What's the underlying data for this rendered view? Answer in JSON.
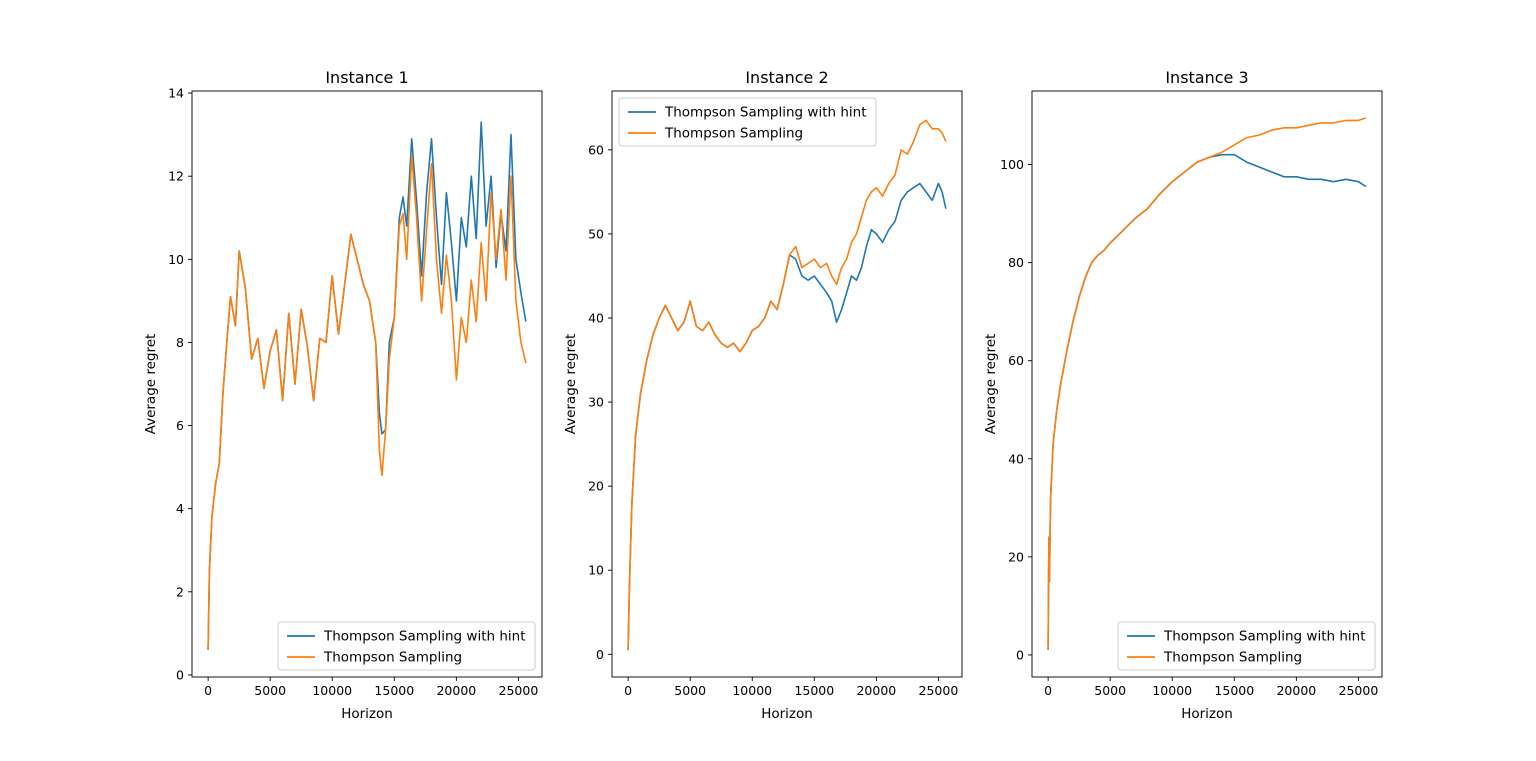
{
  "colors": {
    "series1": "#1f77b4",
    "series2": "#ff7f0e"
  },
  "chart_data": [
    {
      "type": "line",
      "title": "Instance 1",
      "xlabel": "Horizon",
      "ylabel": "Average regret",
      "xlim": [
        -1300,
        26900
      ],
      "ylim": [
        -0.05,
        14.05
      ],
      "xticks": [
        0,
        5000,
        10000,
        15000,
        20000,
        25000
      ],
      "yticks": [
        0,
        2,
        4,
        6,
        8,
        10,
        12,
        14
      ],
      "grid": false,
      "legend": {
        "position": "lower-right",
        "entries": [
          "Thompson Sampling with hint",
          "Thompson Sampling"
        ]
      },
      "series": [
        {
          "name": "Thompson Sampling with hint",
          "color": "#1f77b4",
          "x": [
            0,
            100,
            300,
            600,
            900,
            1200,
            1500,
            1800,
            2200,
            2500,
            3000,
            3500,
            4000,
            4500,
            5000,
            5500,
            6000,
            6500,
            7000,
            7500,
            8000,
            8500,
            9000,
            9500,
            10000,
            10500,
            11000,
            11500,
            12000,
            12500,
            13000,
            13500,
            13800,
            14000,
            14300,
            14600,
            15000,
            15400,
            15700,
            16000,
            16400,
            16800,
            17200,
            17600,
            18000,
            18400,
            18800,
            19200,
            19600,
            20000,
            20400,
            20800,
            21200,
            21600,
            22000,
            22400,
            22800,
            23200,
            23600,
            24000,
            24400,
            24800,
            25200,
            25600
          ],
          "y": [
            0.6,
            2.5,
            3.8,
            4.6,
            5.1,
            6.8,
            8.0,
            9.1,
            8.4,
            10.2,
            9.3,
            7.6,
            8.1,
            6.9,
            7.8,
            8.3,
            6.6,
            8.7,
            7.0,
            8.8,
            7.9,
            6.6,
            8.1,
            8.0,
            9.6,
            8.2,
            9.4,
            10.6,
            10.0,
            9.4,
            9.0,
            8.0,
            6.3,
            5.8,
            5.9,
            8.0,
            8.6,
            11.0,
            11.5,
            10.8,
            12.9,
            11.4,
            9.6,
            11.6,
            12.9,
            11.0,
            9.4,
            11.6,
            10.4,
            9.0,
            11.0,
            10.3,
            12.0,
            10.5,
            13.3,
            10.8,
            12.0,
            9.8,
            11.1,
            10.2,
            13.0,
            10.0,
            9.2,
            8.5
          ]
        },
        {
          "name": "Thompson Sampling",
          "color": "#ff7f0e",
          "x": [
            0,
            100,
            300,
            600,
            900,
            1200,
            1500,
            1800,
            2200,
            2500,
            3000,
            3500,
            4000,
            4500,
            5000,
            5500,
            6000,
            6500,
            7000,
            7500,
            8000,
            8500,
            9000,
            9500,
            10000,
            10500,
            11000,
            11500,
            12000,
            12500,
            13000,
            13500,
            13800,
            14000,
            14300,
            14600,
            15000,
            15400,
            15700,
            16000,
            16400,
            16800,
            17200,
            17600,
            18000,
            18400,
            18800,
            19200,
            19600,
            20000,
            20400,
            20800,
            21200,
            21600,
            22000,
            22400,
            22800,
            23200,
            23600,
            24000,
            24400,
            24800,
            25200,
            25600
          ],
          "y": [
            0.6,
            2.5,
            3.8,
            4.6,
            5.1,
            6.8,
            8.0,
            9.1,
            8.4,
            10.2,
            9.3,
            7.6,
            8.1,
            6.9,
            7.8,
            8.3,
            6.6,
            8.7,
            7.0,
            8.8,
            7.9,
            6.6,
            8.1,
            8.0,
            9.6,
            8.2,
            9.4,
            10.6,
            10.0,
            9.4,
            9.0,
            8.0,
            5.4,
            4.8,
            5.9,
            7.6,
            8.6,
            10.8,
            11.1,
            10.0,
            12.5,
            11.0,
            9.0,
            10.7,
            12.3,
            10.0,
            8.7,
            10.1,
            9.0,
            7.1,
            8.6,
            8.0,
            9.5,
            8.5,
            10.4,
            9.0,
            11.6,
            10.0,
            11.2,
            9.5,
            12.0,
            9.0,
            8.0,
            7.5
          ]
        }
      ]
    },
    {
      "type": "line",
      "title": "Instance 2",
      "xlabel": "Horizon",
      "ylabel": "Average regret",
      "xlim": [
        -1300,
        26900
      ],
      "ylim": [
        -2.7,
        67.0
      ],
      "xticks": [
        0,
        5000,
        10000,
        15000,
        20000,
        25000
      ],
      "yticks": [
        0,
        10,
        20,
        30,
        40,
        50,
        60
      ],
      "grid": false,
      "legend": {
        "position": "upper-left",
        "entries": [
          "Thompson Sampling with hint",
          "Thompson Sampling"
        ]
      },
      "series": [
        {
          "name": "Thompson Sampling with hint",
          "color": "#1f77b4",
          "x": [
            0,
            100,
            300,
            600,
            1000,
            1500,
            2000,
            2500,
            3000,
            3500,
            4000,
            4500,
            5000,
            5500,
            6000,
            6500,
            7000,
            7500,
            8000,
            8500,
            9000,
            9500,
            10000,
            10500,
            11000,
            11500,
            12000,
            12500,
            13000,
            13500,
            14000,
            14500,
            15000,
            15500,
            16000,
            16400,
            16800,
            17200,
            17600,
            18000,
            18400,
            18800,
            19200,
            19600,
            20000,
            20500,
            21000,
            21500,
            22000,
            22500,
            23000,
            23500,
            24000,
            24500,
            25000,
            25300,
            25600
          ],
          "y": [
            0.5,
            8,
            18,
            26,
            31,
            35,
            38,
            40,
            41.5,
            40,
            38.5,
            39.5,
            42,
            39,
            38.5,
            39.5,
            38,
            37,
            36.5,
            37,
            36,
            37,
            38.5,
            39,
            40,
            42,
            41,
            44,
            47.5,
            47,
            45,
            44.5,
            45,
            44,
            43,
            42,
            39.5,
            41,
            43,
            45,
            44.5,
            46,
            48.5,
            50.5,
            50,
            49,
            50.5,
            51.5,
            54,
            55,
            55.5,
            56,
            55,
            54,
            56,
            55,
            53
          ]
        },
        {
          "name": "Thompson Sampling",
          "color": "#ff7f0e",
          "x": [
            0,
            100,
            300,
            600,
            1000,
            1500,
            2000,
            2500,
            3000,
            3500,
            4000,
            4500,
            5000,
            5500,
            6000,
            6500,
            7000,
            7500,
            8000,
            8500,
            9000,
            9500,
            10000,
            10500,
            11000,
            11500,
            12000,
            12500,
            13000,
            13500,
            14000,
            14500,
            15000,
            15500,
            16000,
            16400,
            16800,
            17200,
            17600,
            18000,
            18400,
            18800,
            19200,
            19600,
            20000,
            20500,
            21000,
            21500,
            22000,
            22500,
            23000,
            23500,
            24000,
            24500,
            25000,
            25300,
            25600
          ],
          "y": [
            0.5,
            8,
            18,
            26,
            31,
            35,
            38,
            40,
            41.5,
            40,
            38.5,
            39.5,
            42,
            39,
            38.5,
            39.5,
            38,
            37,
            36.5,
            37,
            36,
            37,
            38.5,
            39,
            40,
            42,
            41,
            44,
            47.5,
            48.5,
            46,
            46.5,
            47,
            46,
            46.5,
            45,
            44,
            46,
            47,
            49,
            50,
            52,
            54,
            55,
            55.5,
            54.5,
            56,
            57,
            60,
            59.5,
            61,
            63,
            63.5,
            62.5,
            62.5,
            62,
            61
          ]
        }
      ]
    },
    {
      "type": "line",
      "title": "Instance 3",
      "xlabel": "Horizon",
      "ylabel": "Average regret",
      "xlim": [
        -1300,
        26900
      ],
      "ylim": [
        -4.5,
        115.0
      ],
      "xticks": [
        0,
        5000,
        10000,
        15000,
        20000,
        25000
      ],
      "yticks": [
        0,
        20,
        40,
        60,
        80,
        100
      ],
      "grid": false,
      "legend": {
        "position": "lower-right",
        "entries": [
          "Thompson Sampling with hint",
          "Thompson Sampling"
        ]
      },
      "series": [
        {
          "name": "Thompson Sampling with hint",
          "color": "#1f77b4",
          "x": [
            0,
            60,
            100,
            200,
            400,
            700,
            1000,
            1500,
            2000,
            2500,
            3000,
            3500,
            4000,
            4500,
            5000,
            6000,
            7000,
            8000,
            9000,
            10000,
            11000,
            12000,
            13000,
            14000,
            15000,
            16000,
            17000,
            18000,
            19000,
            20000,
            21000,
            22000,
            23000,
            24000,
            25000,
            25600
          ],
          "y": [
            1,
            24,
            15,
            32,
            43,
            50,
            55,
            62,
            68,
            73,
            77,
            80,
            81.5,
            82.5,
            84,
            86.5,
            89,
            91,
            94,
            96.5,
            98.5,
            100.5,
            101.5,
            102,
            102,
            100.5,
            99.5,
            98.5,
            97.5,
            97.5,
            97,
            97,
            96.5,
            97,
            96.5,
            95.5
          ]
        },
        {
          "name": "Thompson Sampling",
          "color": "#ff7f0e",
          "x": [
            0,
            60,
            100,
            200,
            400,
            700,
            1000,
            1500,
            2000,
            2500,
            3000,
            3500,
            4000,
            4500,
            5000,
            6000,
            7000,
            8000,
            9000,
            10000,
            11000,
            12000,
            13000,
            14000,
            15000,
            16000,
            17000,
            18000,
            19000,
            20000,
            21000,
            22000,
            23000,
            24000,
            25000,
            25600
          ],
          "y": [
            1,
            24,
            15,
            32,
            43,
            50,
            55,
            62,
            68,
            73,
            77,
            80,
            81.5,
            82.5,
            84,
            86.5,
            89,
            91,
            94,
            96.5,
            98.5,
            100.5,
            101.5,
            102.5,
            104,
            105.5,
            106,
            107,
            107.5,
            107.5,
            108,
            108.5,
            108.5,
            109,
            109,
            109.5
          ]
        }
      ]
    }
  ]
}
